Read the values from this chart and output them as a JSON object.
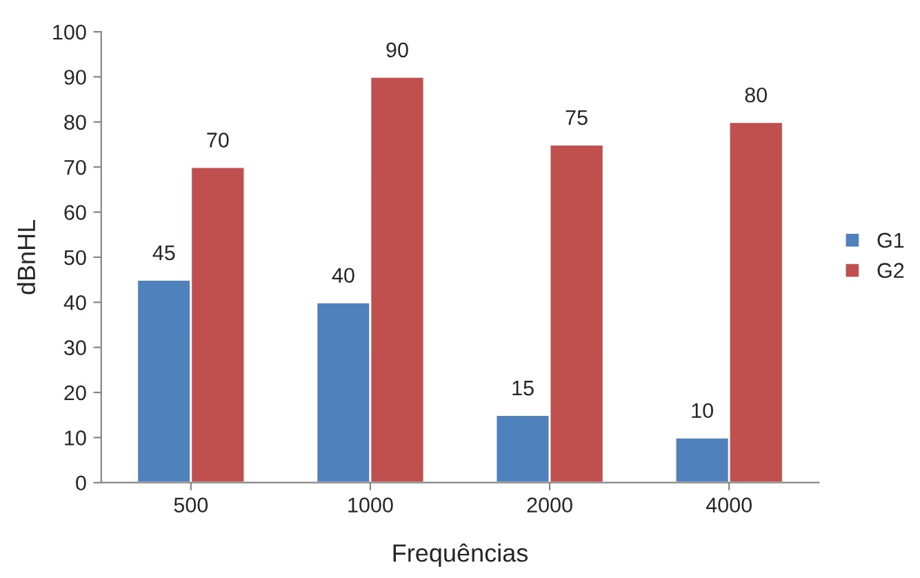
{
  "chart_data": {
    "type": "bar",
    "xlabel": "Frequências",
    "ylabel": "dBnHL",
    "categories": [
      "500",
      "1000",
      "2000",
      "4000"
    ],
    "series": [
      {
        "name": "G1",
        "color": "#4f81bd",
        "values": [
          45,
          40,
          15,
          10
        ]
      },
      {
        "name": "G2",
        "color": "#c0504d",
        "values": [
          70,
          90,
          75,
          80
        ]
      }
    ],
    "ylim": [
      0,
      100
    ],
    "yticks": [
      0,
      10,
      20,
      30,
      40,
      50,
      60,
      70,
      80,
      90,
      100
    ],
    "data_labels": true,
    "legend": "right",
    "grid": false
  }
}
